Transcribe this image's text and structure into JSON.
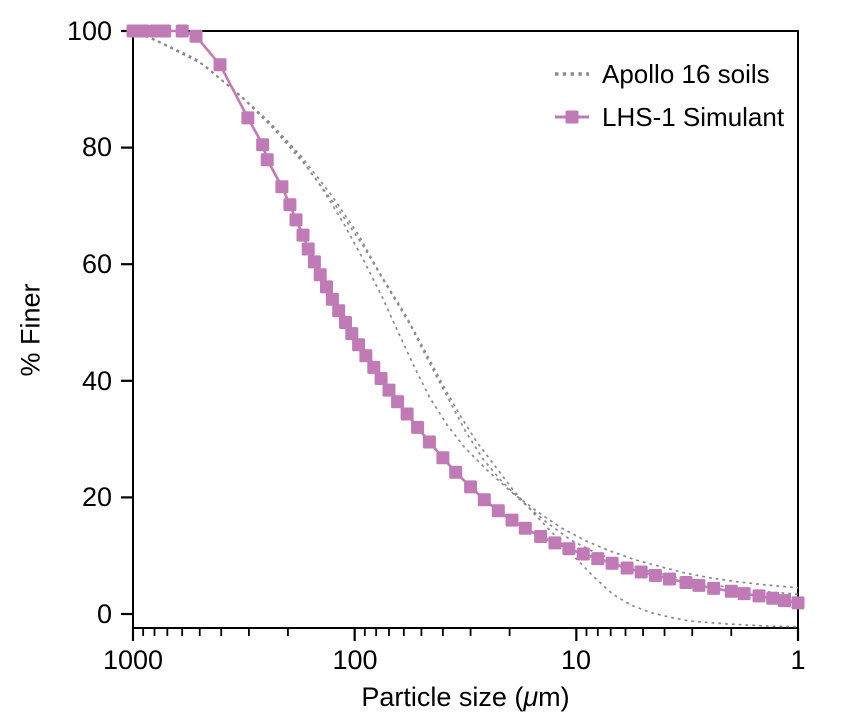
{
  "figure": {
    "background": "#ffffff",
    "text_color": "#000000",
    "spine_color": "#000000"
  },
  "legend": {
    "position": "upper-right-inside",
    "items": [
      {
        "label": "Apollo 16 soils",
        "marker": "dotted-line",
        "color": "#8a8a8a"
      },
      {
        "label": "LHS-1 Simulant",
        "marker": "square-with-line",
        "color": "#c07ab5"
      }
    ]
  },
  "chart_data": {
    "type": "line",
    "title": "",
    "xlabel": "Particle size (μm)",
    "xlabel_pre": "Particle size (",
    "xlabel_mu": "μ",
    "xlabel_post": "m)",
    "ylabel": "% Finer",
    "grid": false,
    "x_axis": {
      "scale": "log",
      "reversed": true,
      "range": [
        1000,
        1
      ],
      "ticks": [
        1000,
        100,
        10,
        1
      ],
      "tick_labels": [
        "1000",
        "100",
        "10",
        "1"
      ],
      "minor_ticks": true
    },
    "y_axis": {
      "scale": "linear",
      "range": [
        -2.4,
        100
      ],
      "ticks": [
        0,
        20,
        40,
        60,
        80,
        100
      ],
      "tick_labels": [
        "0",
        "20",
        "40",
        "60",
        "80",
        "100"
      ]
    },
    "series": [
      {
        "id": "apollo-16-soil-1",
        "name": "Apollo 16 soils",
        "style": "dotted",
        "marker": "none",
        "color": "#8a8a8a",
        "points": [
          [
            1000,
            100
          ],
          [
            837,
            98.9
          ],
          [
            525,
            95.3
          ],
          [
            348,
            89.8
          ],
          [
            254,
            85.0
          ],
          [
            186,
            79.5
          ],
          [
            140,
            73.0
          ],
          [
            111,
            66.7
          ],
          [
            90,
            60.3
          ],
          [
            74.8,
            54.2
          ],
          [
            62.7,
            47.8
          ],
          [
            53.5,
            42.2
          ],
          [
            45.7,
            37.0
          ],
          [
            38.2,
            32.4
          ],
          [
            31.8,
            28.5
          ],
          [
            25.3,
            24.7
          ],
          [
            19.6,
            20.9
          ],
          [
            14.9,
            17.5
          ],
          [
            11.6,
            14.7
          ],
          [
            9.0,
            12.5
          ],
          [
            7.05,
            10.8
          ],
          [
            5.42,
            9.3
          ],
          [
            4.16,
            8.1
          ],
          [
            3.2,
            7.0
          ],
          [
            2.49,
            6.2
          ],
          [
            1.86,
            5.5
          ],
          [
            1.4,
            5.0
          ],
          [
            1.0,
            4.5
          ]
        ]
      },
      {
        "id": "apollo-16-soil-2",
        "name": "Apollo 16 soils",
        "style": "dotted",
        "marker": "none",
        "color": "#8a8a8a",
        "points": [
          [
            1000,
            100
          ],
          [
            758,
            98.1
          ],
          [
            474,
            94.1
          ],
          [
            312,
            88.1
          ],
          [
            229,
            83.0
          ],
          [
            167,
            77.0
          ],
          [
            122,
            70.1
          ],
          [
            92,
            63.3
          ],
          [
            72,
            56.4
          ],
          [
            56,
            49.5
          ],
          [
            45.5,
            42.7
          ],
          [
            37.5,
            36.7
          ],
          [
            31.5,
            31.2
          ],
          [
            26.5,
            26.7
          ],
          [
            22.0,
            23.0
          ],
          [
            17.5,
            19.2
          ],
          [
            13.7,
            15.8
          ],
          [
            10.6,
            12.7
          ],
          [
            8.2,
            10.5
          ],
          [
            6.35,
            8.9
          ],
          [
            4.9,
            7.5
          ],
          [
            3.8,
            6.5
          ],
          [
            2.95,
            5.5
          ],
          [
            2.28,
            4.8
          ],
          [
            1.77,
            4.3
          ],
          [
            1.37,
            3.8
          ],
          [
            1.0,
            3.4
          ]
        ]
      },
      {
        "id": "apollo-16-soil-3",
        "name": "Apollo 16 soils",
        "style": "dotted",
        "marker": "none",
        "color": "#8a8a8a",
        "points": [
          [
            1000,
            100
          ],
          [
            796,
            98.4
          ],
          [
            499,
            94.6
          ],
          [
            329,
            89.0
          ],
          [
            241,
            84.3
          ],
          [
            176,
            78.7
          ],
          [
            127,
            71.8
          ],
          [
            96,
            65.0
          ],
          [
            76,
            58.1
          ],
          [
            59,
            51.3
          ],
          [
            48.5,
            45.3
          ],
          [
            40,
            39.3
          ],
          [
            33.5,
            34.1
          ],
          [
            28,
            29.4
          ],
          [
            23.5,
            25.6
          ],
          [
            19.3,
            21.3
          ],
          [
            15.6,
            17.3
          ],
          [
            12.6,
            13.6
          ],
          [
            10.2,
            9.8
          ],
          [
            8.3,
            6.3
          ],
          [
            6.85,
            3.4
          ],
          [
            5.65,
            1.5
          ],
          [
            4.65,
            0.3
          ],
          [
            3.85,
            -0.5
          ],
          [
            3.1,
            -1.2
          ],
          [
            2.1,
            -1.7
          ],
          [
            1.4,
            -2.05
          ],
          [
            1.0,
            -2.2
          ]
        ]
      },
      {
        "id": "lhs-1-simulant",
        "name": "LHS-1 Simulant",
        "style": "solid",
        "marker": "square",
        "color": "#c07ab5",
        "points": [
          [
            1000,
            100
          ],
          [
            900,
            100
          ],
          [
            790,
            100
          ],
          [
            720,
            100
          ],
          [
            600,
            100
          ],
          [
            520,
            99.1
          ],
          [
            405,
            94.2
          ],
          [
            303,
            85.1
          ],
          [
            260,
            80.5
          ],
          [
            248,
            77.9
          ],
          [
            213,
            73.3
          ],
          [
            196,
            70.2
          ],
          [
            184,
            67.6
          ],
          [
            171,
            65.0
          ],
          [
            162,
            62.6
          ],
          [
            152,
            60.4
          ],
          [
            143,
            58.2
          ],
          [
            134,
            56.1
          ],
          [
            126,
            54.0
          ],
          [
            118,
            52.0
          ],
          [
            110,
            50.0
          ],
          [
            103,
            48.1
          ],
          [
            96,
            46.2
          ],
          [
            89,
            44.3
          ],
          [
            82,
            42.3
          ],
          [
            76,
            40.4
          ],
          [
            70,
            38.4
          ],
          [
            64,
            36.4
          ],
          [
            58,
            34.3
          ],
          [
            52,
            32.0
          ],
          [
            46,
            29.5
          ],
          [
            40,
            26.8
          ],
          [
            35,
            24.3
          ],
          [
            30,
            21.8
          ],
          [
            26,
            19.6
          ],
          [
            22.5,
            17.7
          ],
          [
            19.5,
            16.1
          ],
          [
            17,
            14.7
          ],
          [
            14.5,
            13.3
          ],
          [
            12.5,
            12.2
          ],
          [
            10.8,
            11.2
          ],
          [
            9.3,
            10.3
          ],
          [
            8,
            9.5
          ],
          [
            6.9,
            8.7
          ],
          [
            5.9,
            7.9
          ],
          [
            5.1,
            7.2
          ],
          [
            4.4,
            6.6
          ],
          [
            3.8,
            6.0
          ],
          [
            3.2,
            5.4
          ],
          [
            2.8,
            4.9
          ],
          [
            2.4,
            4.4
          ],
          [
            2.0,
            3.9
          ],
          [
            1.75,
            3.5
          ],
          [
            1.5,
            3.1
          ],
          [
            1.3,
            2.7
          ],
          [
            1.15,
            2.3
          ],
          [
            1.0,
            1.9
          ]
        ]
      }
    ]
  }
}
